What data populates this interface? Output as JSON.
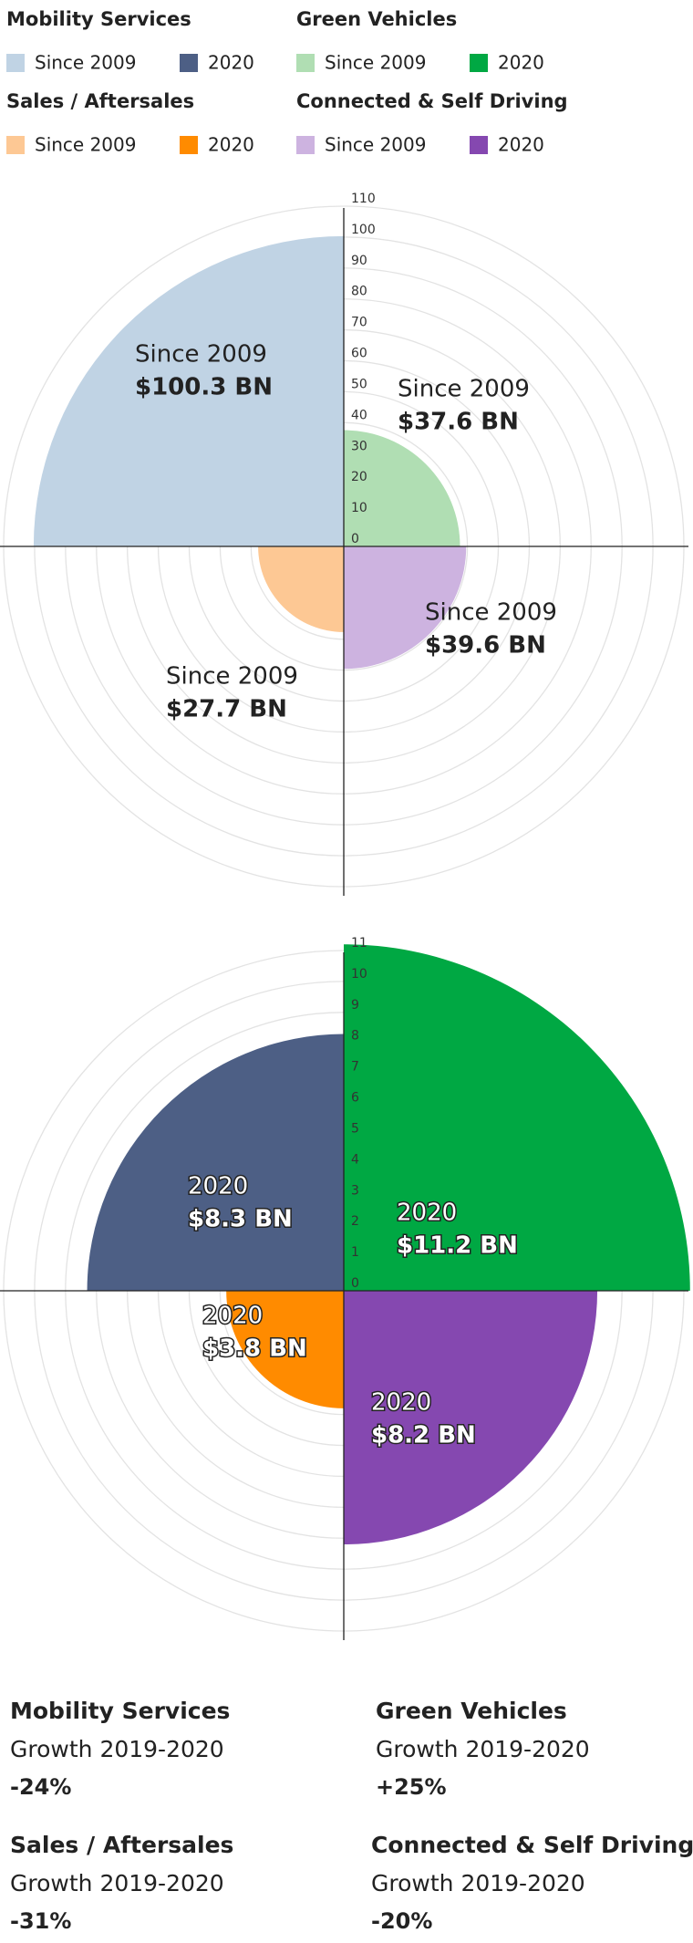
{
  "chart_data": [
    {
      "type": "polar",
      "label": "Since 2009",
      "categories": [
        "Mobility Services",
        "Green Vehicles",
        "Sales / Aftersales",
        "Connected & Self Driving"
      ],
      "values": [
        100.3,
        37.6,
        27.7,
        39.6
      ],
      "value_labels": [
        "$100.3 BN",
        "$37.6 BN",
        "$27.7 BN",
        "$39.6 BN"
      ],
      "colors": [
        "#c0d3e4",
        "#b0deb3",
        "#fdc894",
        "#cdb3e0"
      ],
      "rlim": [
        0,
        110
      ],
      "rticks": [
        0,
        10,
        20,
        30,
        40,
        50,
        60,
        70,
        80,
        90,
        100,
        110
      ]
    },
    {
      "type": "polar",
      "label": "2020",
      "categories": [
        "Mobility Services",
        "Green Vehicles",
        "Sales / Aftersales",
        "Connected & Self Driving"
      ],
      "values": [
        8.3,
        11.2,
        3.8,
        8.2
      ],
      "value_labels": [
        "$8.3 BN",
        "$11.2 BN",
        "$3.8 BN",
        "$8.2 BN"
      ],
      "colors": [
        "#4d5f85",
        "#00a843",
        "#ff8b00",
        "#8548b0"
      ],
      "rlim": [
        0,
        11
      ],
      "rticks": [
        0,
        1,
        2,
        3,
        4,
        5,
        6,
        7,
        8,
        9,
        10,
        11
      ]
    }
  ],
  "growth": {
    "label": "Growth 2019-2020",
    "values": [
      "-24%",
      "+25%",
      "-31%",
      "-20%"
    ]
  }
}
